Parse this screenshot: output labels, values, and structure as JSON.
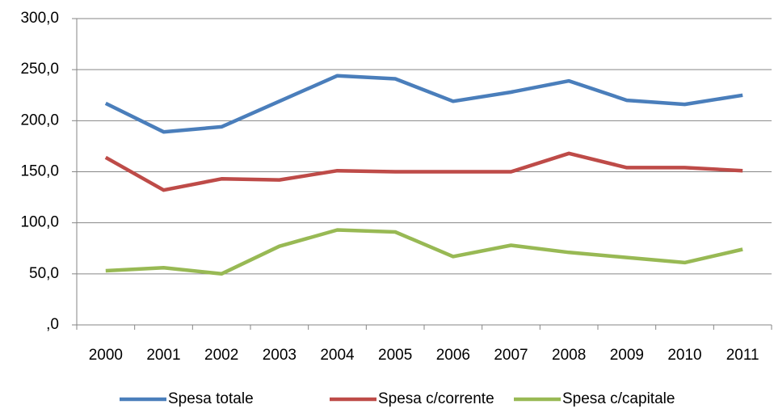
{
  "chart_data": {
    "type": "line",
    "categories": [
      "2000",
      "2001",
      "2002",
      "2003",
      "2004",
      "2005",
      "2006",
      "2007",
      "2008",
      "2009",
      "2010",
      "2011"
    ],
    "series": [
      {
        "name": "Spesa totale",
        "color": "#4a7ebb",
        "values": [
          217,
          189,
          194,
          219,
          244,
          241,
          219,
          228,
          239,
          220,
          216,
          225
        ]
      },
      {
        "name": "Spesa c/corrente",
        "color": "#be4b48",
        "values": [
          164,
          132,
          143,
          142,
          151,
          150,
          150,
          150,
          168,
          154,
          154,
          151
        ]
      },
      {
        "name": "Spesa c/capitale",
        "color": "#98b954",
        "values": [
          53,
          56,
          50,
          77,
          93,
          91,
          67,
          78,
          71,
          66,
          61,
          74
        ]
      }
    ],
    "ylim": [
      0,
      300
    ],
    "yticks": [
      {
        "value": 0,
        "label": ",0"
      },
      {
        "value": 50,
        "label": "50,0"
      },
      {
        "value": 100,
        "label": "100,0"
      },
      {
        "value": 150,
        "label": "150,0"
      },
      {
        "value": 200,
        "label": "200,0"
      },
      {
        "value": 250,
        "label": "250,0"
      },
      {
        "value": 300,
        "label": "300,0"
      }
    ],
    "grid": true,
    "legend": "bottom"
  }
}
